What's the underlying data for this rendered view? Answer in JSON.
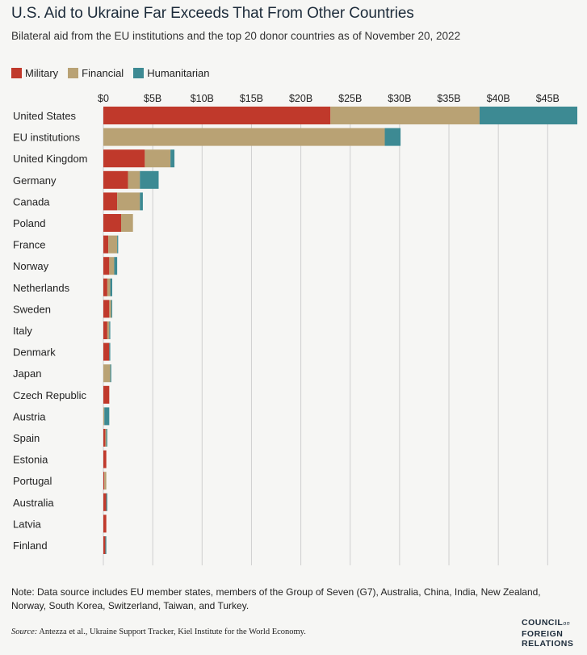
{
  "header": {
    "title": "U.S. Aid to Ukraine Far Exceeds That From Other Countries",
    "subtitle": "Bilateral aid from the EU institutions and the top 20 donor countries as of November 20, 2022"
  },
  "legend": {
    "military": "Military",
    "financial": "Financial",
    "humanitarian": "Humanitarian"
  },
  "colors": {
    "military": "#c0392b",
    "financial": "#b9a274",
    "humanitarian": "#3d8a93",
    "grid": "#cfcfcf",
    "background": "#f6f6f4"
  },
  "footer": {
    "note": "Note: Data source includes EU member states, members of the Group of Seven (G7), Australia, China, India, New Zealand, Norway, South Korea, Switzerland, Taiwan, and Turkey.",
    "source_prefix": "Source:",
    "source_text": " Antezza et al., Ukraine Support Tracker, Kiel Institute for the World Economy.",
    "logo_line1": "COUNCIL",
    "logo_line1_small": "on",
    "logo_line2": "FOREIGN",
    "logo_line3": "RELATIONS"
  },
  "chart_data": {
    "type": "bar",
    "orientation": "horizontal",
    "stacked": true,
    "title": "U.S. Aid to Ukraine Far Exceeds That From Other Countries",
    "xlim": [
      0,
      48
    ],
    "x_ticks": [
      0,
      5,
      10,
      15,
      20,
      25,
      30,
      35,
      40,
      45
    ],
    "x_tick_labels": [
      "$0",
      "$5B",
      "$10B",
      "$15B",
      "$20B",
      "$25B",
      "$30B",
      "$35B",
      "$40B",
      "$45B"
    ],
    "grid": true,
    "legend_position": "top-left",
    "categories": [
      "United States",
      "EU institutions",
      "United Kingdom",
      "Germany",
      "Canada",
      "Poland",
      "France",
      "Norway",
      "Netherlands",
      "Sweden",
      "Italy",
      "Denmark",
      "Japan",
      "Czech Republic",
      "Austria",
      "Spain",
      "Estonia",
      "Portugal",
      "Australia",
      "Latvia",
      "Finland"
    ],
    "series": [
      {
        "name": "Military",
        "key": "military",
        "values": [
          23.0,
          0.0,
          4.2,
          2.5,
          1.4,
          1.8,
          0.5,
          0.6,
          0.4,
          0.6,
          0.4,
          0.6,
          0.0,
          0.6,
          0.0,
          0.2,
          0.3,
          0.1,
          0.3,
          0.3,
          0.2
        ]
      },
      {
        "name": "Financial",
        "key": "financial",
        "values": [
          15.1,
          28.5,
          2.6,
          1.2,
          2.3,
          1.2,
          0.9,
          0.5,
          0.3,
          0.2,
          0.2,
          0.0,
          0.7,
          0.0,
          0.1,
          0.1,
          0.0,
          0.2,
          0.0,
          0.0,
          0.0
        ]
      },
      {
        "name": "Humanitarian",
        "key": "humanitarian",
        "values": [
          9.9,
          1.6,
          0.4,
          1.9,
          0.3,
          0.0,
          0.1,
          0.3,
          0.2,
          0.1,
          0.1,
          0.1,
          0.1,
          0.0,
          0.5,
          0.1,
          0.0,
          0.0,
          0.1,
          0.0,
          0.1
        ]
      }
    ]
  }
}
